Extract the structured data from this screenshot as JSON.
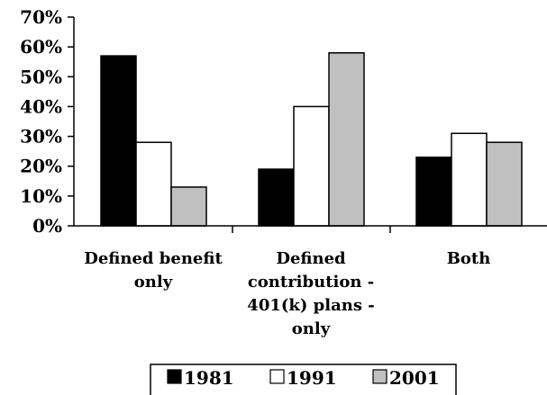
{
  "chart_data": {
    "type": "bar",
    "categories": [
      [
        "Defined benefit",
        "only"
      ],
      [
        "Defined",
        "contribution -",
        "401(k) plans -",
        "only"
      ],
      [
        "Both"
      ]
    ],
    "series": [
      {
        "name": "1981",
        "values": [
          57,
          19,
          23
        ],
        "color": "#000000"
      },
      {
        "name": "1991",
        "values": [
          28,
          40,
          31
        ],
        "color": "#ffffff"
      },
      {
        "name": "2001",
        "values": [
          13,
          58,
          28
        ],
        "color": "#c0c0c0"
      }
    ],
    "ylim": [
      0,
      70
    ],
    "yticks": [
      "0%",
      "10%",
      "20%",
      "30%",
      "40%",
      "50%",
      "60%",
      "70%"
    ],
    "grid": false,
    "legend_position": "bottom",
    "title": "",
    "xlabel": "",
    "ylabel": ""
  }
}
